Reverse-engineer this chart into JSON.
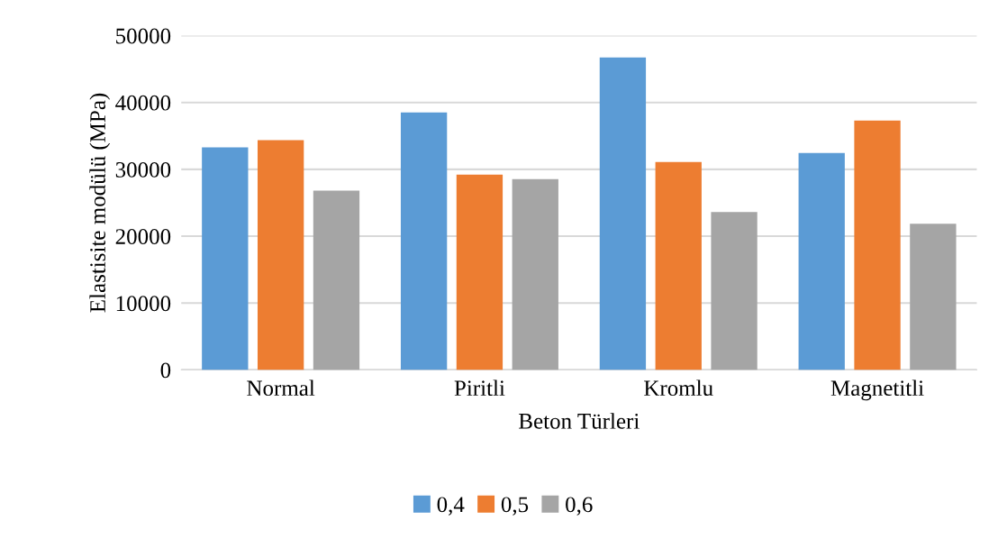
{
  "chart_data": {
    "type": "bar",
    "xlabel": "Beton Türleri",
    "ylabel": "Elastisite modülü (MPa)",
    "categories": [
      "Normal",
      "Piritli",
      "Kromlu",
      "Magnetitli"
    ],
    "series": [
      {
        "name": "0,4",
        "color": "#5b9bd5",
        "values": [
          33300,
          38500,
          46750,
          32450
        ]
      },
      {
        "name": "0,5",
        "color": "#ed7d31",
        "values": [
          34350,
          29200,
          31100,
          37300
        ]
      },
      {
        "name": "0,6",
        "color": "#a5a5a5",
        "values": [
          26800,
          28550,
          23600,
          21850
        ]
      }
    ],
    "ylim": [
      0,
      50000
    ],
    "yticks": [
      0,
      10000,
      20000,
      30000,
      40000,
      50000
    ],
    "grid": "y",
    "legend": "bottom"
  }
}
